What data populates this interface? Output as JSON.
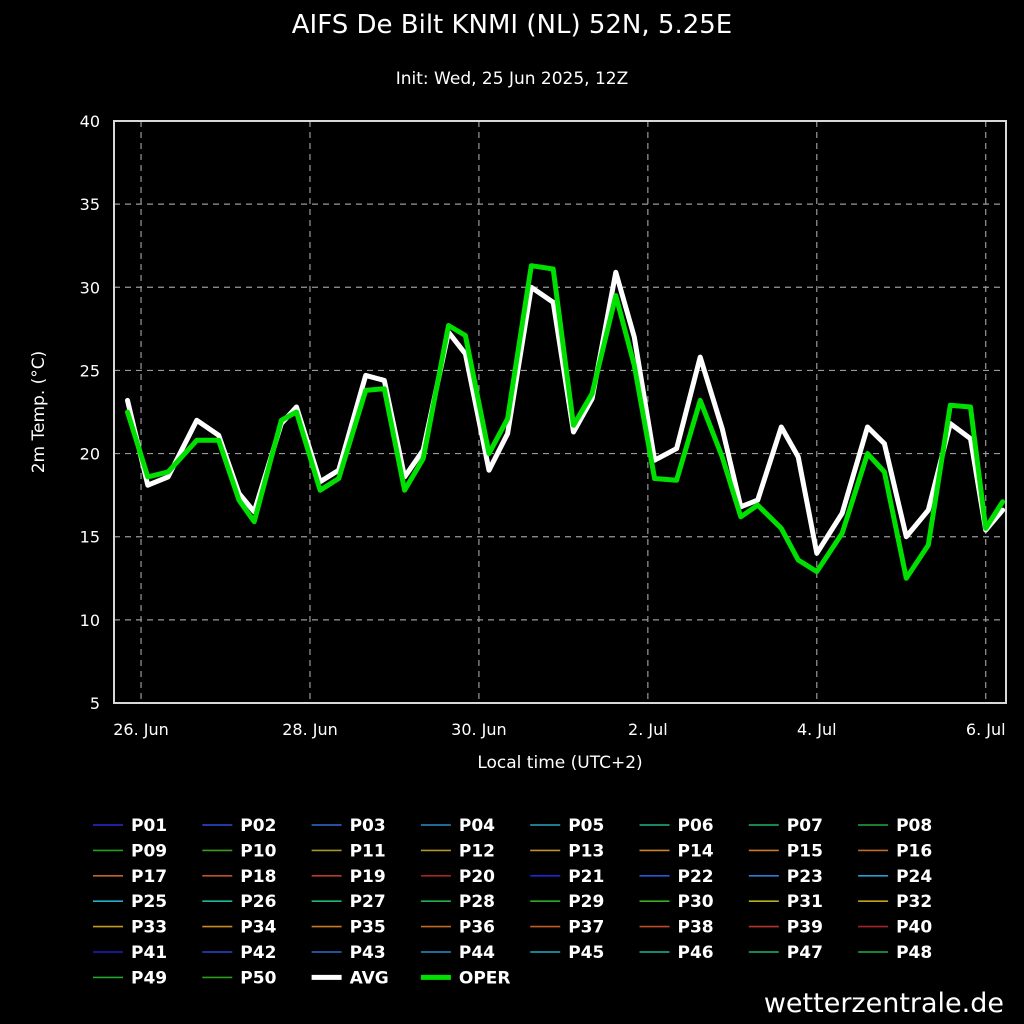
{
  "chart_data": {
    "type": "line",
    "title": "AIFS De Bilt KNMI (NL) 52N, 5.25E",
    "subtitle": "Init: Wed, 25 Jun 2025, 12Z",
    "xlabel": "Local time (UTC+2)",
    "ylabel": "2m Temp. (°C)",
    "ylim": [
      5,
      40
    ],
    "yticks": [
      5,
      10,
      15,
      20,
      25,
      30,
      35,
      40
    ],
    "xlim": [
      -0.16,
      5.12
    ],
    "xticks": [
      {
        "label": "26. Jun",
        "day": 0
      },
      {
        "label": "28. Jun",
        "day": 1
      },
      {
        "label": "30. Jun",
        "day": 2
      },
      {
        "label": "2. Jul",
        "day": 3
      },
      {
        "label": "4. Jul",
        "day": 4
      },
      {
        "label": "6. Jul",
        "day": 5
      }
    ],
    "grid": true,
    "legend_position": "bottom",
    "x": [
      -0.08,
      0.04,
      0.16,
      0.33,
      0.46,
      0.58,
      0.67,
      0.83,
      0.92,
      1.06,
      1.17,
      1.33,
      1.44,
      1.56,
      1.67,
      1.82,
      1.92,
      2.06,
      2.17,
      2.31,
      2.44,
      2.56,
      2.67,
      2.81,
      2.92,
      3.04,
      3.17,
      3.31,
      3.44,
      3.55,
      3.65,
      3.79,
      3.89,
      4.0,
      4.15,
      4.3,
      4.4,
      4.53,
      4.66,
      4.79,
      4.91,
      5.0,
      5.1
    ],
    "series": [
      {
        "name": "AVG",
        "values": [
          23.2,
          18.1,
          18.6,
          22.0,
          21.1,
          17.6,
          16.5,
          21.8,
          22.8,
          18.3,
          19.0,
          24.7,
          24.4,
          18.6,
          20.2,
          27.3,
          26.0,
          19.0,
          21.2,
          30.0,
          29.1,
          21.3,
          23.3,
          30.9,
          27.0,
          19.6,
          20.3,
          25.8,
          21.5,
          16.8,
          17.2,
          21.6,
          19.8,
          14.0,
          16.4,
          21.6,
          20.6,
          15.0,
          16.6,
          21.8,
          20.9,
          15.4,
          16.6
        ],
        "color": "#ffffff",
        "width": 5
      },
      {
        "name": "OPER",
        "values": [
          22.5,
          18.6,
          18.9,
          20.8,
          20.8,
          17.2,
          15.9,
          22.0,
          22.5,
          17.8,
          18.5,
          23.8,
          23.9,
          17.8,
          19.7,
          27.7,
          27.1,
          20.0,
          22.1,
          31.3,
          31.1,
          21.7,
          23.6,
          29.5,
          25.3,
          18.5,
          18.4,
          23.2,
          19.8,
          16.2,
          16.9,
          15.5,
          13.6,
          12.9,
          15.2,
          20.0,
          18.9,
          12.5,
          14.5,
          22.9,
          22.8,
          15.5,
          17.1
        ],
        "color": "#00e000",
        "width": 5
      }
    ],
    "legend": [
      {
        "label": "P01",
        "color": "#2a2ad8"
      },
      {
        "label": "P02",
        "color": "#2d4fd6"
      },
      {
        "label": "P03",
        "color": "#2e6fd0"
      },
      {
        "label": "P04",
        "color": "#2a8ac8"
      },
      {
        "label": "P05",
        "color": "#22a8c0"
      },
      {
        "label": "P06",
        "color": "#1fb48a"
      },
      {
        "label": "P07",
        "color": "#21b464"
      },
      {
        "label": "P08",
        "color": "#22a83c"
      },
      {
        "label": "P09",
        "color": "#20a020"
      },
      {
        "label": "P10",
        "color": "#3c9a1c"
      },
      {
        "label": "P11",
        "color": "#a09a28"
      },
      {
        "label": "P12",
        "color": "#b0962a"
      },
      {
        "label": "P13",
        "color": "#c0902a"
      },
      {
        "label": "P14",
        "color": "#c8842a"
      },
      {
        "label": "P15",
        "color": "#c8782c"
      },
      {
        "label": "P16",
        "color": "#c06a2c"
      },
      {
        "label": "P17",
        "color": "#c4642a"
      },
      {
        "label": "P18",
        "color": "#c4502a"
      },
      {
        "label": "P19",
        "color": "#b83a2a"
      },
      {
        "label": "P20",
        "color": "#a82424"
      },
      {
        "label": "P21",
        "color": "#2222d4"
      },
      {
        "label": "P22",
        "color": "#2a56d8"
      },
      {
        "label": "P23",
        "color": "#2c7ed4"
      },
      {
        "label": "P24",
        "color": "#2a9ad0"
      },
      {
        "label": "P25",
        "color": "#24b0c8"
      },
      {
        "label": "P26",
        "color": "#1fb89c"
      },
      {
        "label": "P27",
        "color": "#20b874"
      },
      {
        "label": "P28",
        "color": "#22b050"
      },
      {
        "label": "P29",
        "color": "#2aac28"
      },
      {
        "label": "P30",
        "color": "#34b020"
      },
      {
        "label": "P31",
        "color": "#b4b020"
      },
      {
        "label": "P32",
        "color": "#c0a41c"
      },
      {
        "label": "P33",
        "color": "#c49a22"
      },
      {
        "label": "P34",
        "color": "#c88a24"
      },
      {
        "label": "P35",
        "color": "#c87a26"
      },
      {
        "label": "P36",
        "color": "#c46a28"
      },
      {
        "label": "P37",
        "color": "#c45c2a"
      },
      {
        "label": "P38",
        "color": "#c04a2a"
      },
      {
        "label": "P39",
        "color": "#b4362a"
      },
      {
        "label": "P40",
        "color": "#a42626"
      },
      {
        "label": "P41",
        "color": "#2020c8"
      },
      {
        "label": "P42",
        "color": "#2848d0"
      },
      {
        "label": "P43",
        "color": "#2a6ccc"
      },
      {
        "label": "P44",
        "color": "#2a8ec8"
      },
      {
        "label": "P45",
        "color": "#22acc4"
      },
      {
        "label": "P46",
        "color": "#1eb496"
      },
      {
        "label": "P47",
        "color": "#20b46c"
      },
      {
        "label": "P48",
        "color": "#22ac48"
      },
      {
        "label": "P49",
        "color": "#24a42a"
      },
      {
        "label": "P50",
        "color": "#2e9c20"
      },
      {
        "label": "AVG",
        "color": "#ffffff",
        "thick": true
      },
      {
        "label": "OPER",
        "color": "#00e000",
        "thick": true
      }
    ]
  },
  "watermark": "wetterzentrale.de"
}
